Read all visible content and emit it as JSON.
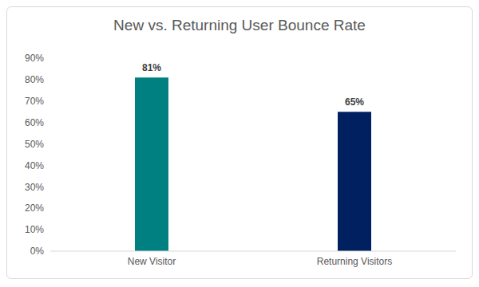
{
  "chart_data": {
    "type": "bar",
    "title": "New vs. Returning User Bounce Rate",
    "categories": [
      "New Visitor",
      "Returning Visitors"
    ],
    "values": [
      81,
      65
    ],
    "value_labels": [
      "81%",
      "65%"
    ],
    "colors": [
      "#008080",
      "#002060"
    ],
    "ylim": [
      0,
      90
    ],
    "yticks": [
      {
        "value": 0,
        "label": "0%"
      },
      {
        "value": 10,
        "label": "10%"
      },
      {
        "value": 20,
        "label": "20%"
      },
      {
        "value": 30,
        "label": "30%"
      },
      {
        "value": 40,
        "label": "40%"
      },
      {
        "value": 50,
        "label": "50%"
      },
      {
        "value": 60,
        "label": "60%"
      },
      {
        "value": 70,
        "label": "70%"
      },
      {
        "value": 80,
        "label": "80%"
      },
      {
        "value": 90,
        "label": "90%"
      }
    ],
    "grid": false,
    "legend": null,
    "data_labels": true
  }
}
